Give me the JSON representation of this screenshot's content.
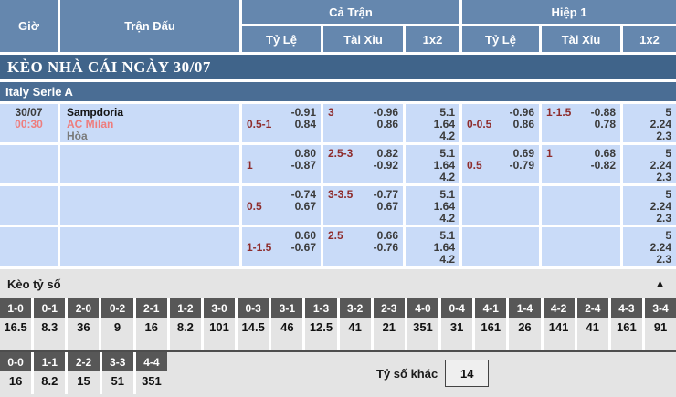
{
  "colors": {
    "header_blue": "#6587ae",
    "title_bar_blue": "#40648a",
    "league_bar_blue": "#4a6d94",
    "row_light_blue": "#c9dbf8",
    "handicap_red": "#8e2c2c",
    "team_time_red": "#ee7d7d",
    "score_header_gray": "#575757",
    "section_gray": "#e4e4e4"
  },
  "header": {
    "col_time": "Giờ",
    "col_match": "Trận Đấu",
    "group_full": "Cả Trận",
    "group_half": "Hiệp 1",
    "sub_odds": "Tỷ Lệ",
    "sub_ou": "Tài Xỉu",
    "sub_1x2": "1x2"
  },
  "title_bar": "KÈO NHÀ CÁI NGÀY 30/07",
  "league_bar": "Italy Serie A",
  "match": {
    "date": "30/07",
    "time": "00:30",
    "home": "Sampdoria",
    "away": "AC Milan",
    "draw": "Hòa"
  },
  "odds_rows": [
    {
      "ft_hdp": {
        "hdp": "0.5-1",
        "o1": "-0.91",
        "o2": "0.84"
      },
      "ft_ou": {
        "hdp": "3",
        "o1": "-0.96",
        "o2": "0.86"
      },
      "ft_1x2": [
        "5.1",
        "1.64",
        "4.2"
      ],
      "h1_hdp": {
        "hdp": "0-0.5",
        "o1": "-0.96",
        "o2": "0.86"
      },
      "h1_ou": {
        "hdp": "1-1.5",
        "o1": "-0.88",
        "o2": "0.78"
      },
      "h1_1x2": [
        "5",
        "2.24",
        "2.3"
      ]
    },
    {
      "ft_hdp": {
        "hdp": "1",
        "o1": "0.80",
        "o2": "-0.87"
      },
      "ft_ou": {
        "hdp": "2.5-3",
        "o1": "0.82",
        "o2": "-0.92"
      },
      "ft_1x2": [
        "5.1",
        "1.64",
        "4.2"
      ],
      "h1_hdp": {
        "hdp": "0.5",
        "o1": "0.69",
        "o2": "-0.79"
      },
      "h1_ou": {
        "hdp": "1",
        "o1": "0.68",
        "o2": "-0.82"
      },
      "h1_1x2": [
        "5",
        "2.24",
        "2.3"
      ]
    },
    {
      "ft_hdp": {
        "hdp": "0.5",
        "o1": "-0.74",
        "o2": "0.67"
      },
      "ft_ou": {
        "hdp": "3-3.5",
        "o1": "-0.77",
        "o2": "0.67"
      },
      "ft_1x2": [
        "5.1",
        "1.64",
        "4.2"
      ],
      "h1_hdp": {
        "hdp": "",
        "o1": "",
        "o2": ""
      },
      "h1_ou": {
        "hdp": "",
        "o1": "",
        "o2": ""
      },
      "h1_1x2": [
        "5",
        "2.24",
        "2.3"
      ]
    },
    {
      "ft_hdp": {
        "hdp": "1-1.5",
        "o1": "0.60",
        "o2": "-0.67"
      },
      "ft_ou": {
        "hdp": "2.5",
        "o1": "0.66",
        "o2": "-0.76"
      },
      "ft_1x2": [
        "5.1",
        "1.64",
        "4.2"
      ],
      "h1_hdp": {
        "hdp": "",
        "o1": "",
        "o2": ""
      },
      "h1_ou": {
        "hdp": "",
        "o1": "",
        "o2": ""
      },
      "h1_1x2": [
        "5",
        "2.24",
        "2.3"
      ]
    }
  ],
  "score_section": {
    "title": "Kèo tỷ số",
    "collapse_icon": "▲",
    "row1": [
      {
        "score": "1-0",
        "odds": "16.5"
      },
      {
        "score": "0-1",
        "odds": "8.3"
      },
      {
        "score": "2-0",
        "odds": "36"
      },
      {
        "score": "0-2",
        "odds": "9"
      },
      {
        "score": "2-1",
        "odds": "16"
      },
      {
        "score": "1-2",
        "odds": "8.2"
      },
      {
        "score": "3-0",
        "odds": "101"
      },
      {
        "score": "0-3",
        "odds": "14.5"
      },
      {
        "score": "3-1",
        "odds": "46"
      },
      {
        "score": "1-3",
        "odds": "12.5"
      },
      {
        "score": "3-2",
        "odds": "41"
      },
      {
        "score": "2-3",
        "odds": "21"
      },
      {
        "score": "4-0",
        "odds": "351"
      },
      {
        "score": "0-4",
        "odds": "31"
      },
      {
        "score": "4-1",
        "odds": "161"
      },
      {
        "score": "1-4",
        "odds": "26"
      },
      {
        "score": "4-2",
        "odds": "141"
      },
      {
        "score": "2-4",
        "odds": "41"
      },
      {
        "score": "4-3",
        "odds": "161"
      },
      {
        "score": "3-4",
        "odds": "91"
      }
    ],
    "row2": [
      {
        "score": "0-0",
        "odds": "16"
      },
      {
        "score": "1-1",
        "odds": "8.2"
      },
      {
        "score": "2-2",
        "odds": "15"
      },
      {
        "score": "3-3",
        "odds": "51"
      },
      {
        "score": "4-4",
        "odds": "351"
      }
    ],
    "other_label": "Tỷ số khác",
    "other_value": "14"
  }
}
